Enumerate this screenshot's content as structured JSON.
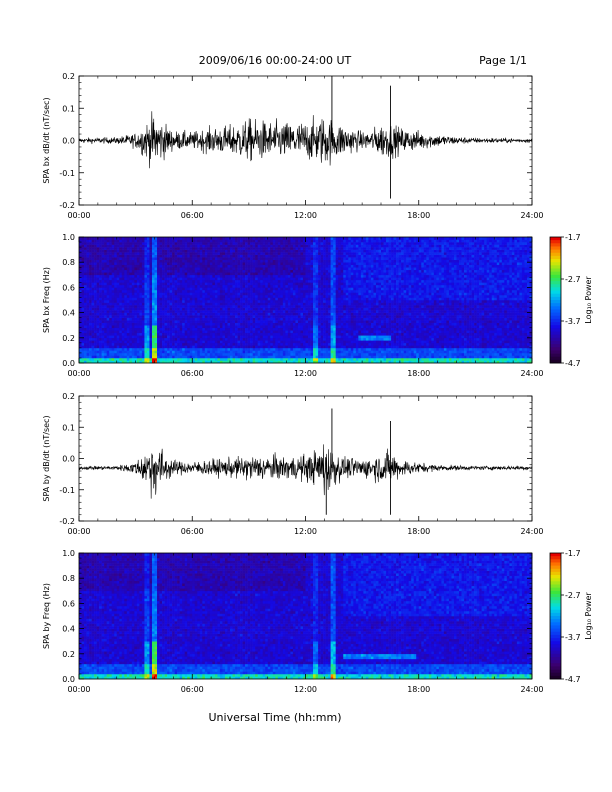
{
  "header": {
    "title": "2009/06/16  00:00-24:00 UT",
    "page": "Page 1/1"
  },
  "footer": {
    "xlabel": "Universal Time (hh:mm)"
  },
  "chart_data": [
    {
      "type": "line",
      "ylabel": "SPA bx dB/dt (nT/sec)",
      "xlim": [
        0,
        24
      ],
      "ylim": [
        -0.2,
        0.2
      ],
      "x_ticks": [
        "00:00",
        "06:00",
        "12:00",
        "18:00",
        "24:00"
      ],
      "y_ticks": [
        "-0.2",
        "-0.1",
        "0.0",
        "0.1",
        "0.2"
      ],
      "baseline": 0.0,
      "envelope": {
        "x": [
          0,
          2,
          3,
          3.5,
          4,
          4.3,
          5,
          6,
          7,
          8,
          9,
          10,
          11,
          12,
          12.5,
          13,
          13.5,
          14,
          15,
          15.5,
          16,
          16.5,
          17,
          18,
          19,
          20,
          21,
          22,
          23,
          24
        ],
        "amp": [
          0.012,
          0.015,
          0.035,
          0.08,
          0.13,
          0.1,
          0.045,
          0.04,
          0.06,
          0.07,
          0.1,
          0.09,
          0.085,
          0.09,
          0.1,
          0.12,
          0.095,
          0.075,
          0.04,
          0.05,
          0.08,
          0.08,
          0.06,
          0.045,
          0.03,
          0.018,
          0.012,
          0.012,
          0.01,
          0.01
        ]
      },
      "spikes": [
        {
          "x": 13.4,
          "y": 0.2
        },
        {
          "x": 16.5,
          "y": -0.18
        },
        {
          "x": 16.5,
          "y": 0.17
        }
      ]
    },
    {
      "type": "heatmap",
      "ylabel": "SPA bx Freq (Hz)",
      "xlim": [
        0,
        24
      ],
      "ylim": [
        0.0,
        1.0
      ],
      "x_ticks": [
        "00:00",
        "06:00",
        "12:00",
        "18:00",
        "24:00"
      ],
      "y_ticks": [
        "0.0",
        "0.2",
        "0.4",
        "0.6",
        "0.8",
        "1.0"
      ],
      "colorbar": {
        "label": "Log₁₀ Power",
        "ticks": [
          "-1.7",
          "-2.7",
          "-3.7",
          "-4.7"
        ],
        "range": [
          -4.7,
          -1.7
        ]
      },
      "vertical_bands": [
        {
          "x": 3.6,
          "strength": 0.5
        },
        {
          "x": 4.0,
          "strength": 0.9
        },
        {
          "x": 12.5,
          "strength": 0.4
        },
        {
          "x": 13.5,
          "strength": 0.55
        }
      ],
      "horizontal_bands": [
        {
          "x0": 14.8,
          "x1": 16.5,
          "freq": 0.2,
          "strength": 0.4
        }
      ]
    },
    {
      "type": "line",
      "ylabel": "SPA by dB/dt (nT/sec)",
      "xlim": [
        0,
        24
      ],
      "ylim": [
        -0.2,
        0.2
      ],
      "x_ticks": [
        "00:00",
        "06:00",
        "12:00",
        "18:00",
        "24:00"
      ],
      "y_ticks": [
        "-0.2",
        "-0.1",
        "0.0",
        "0.1",
        "0.2"
      ],
      "baseline": -0.03,
      "envelope": {
        "x": [
          0,
          2,
          3,
          3.5,
          4,
          4.3,
          5,
          6,
          7,
          8,
          9,
          10,
          11,
          12,
          12.5,
          13,
          13.5,
          14,
          15,
          15.5,
          16,
          16.5,
          17,
          18,
          19,
          20,
          21,
          22,
          23,
          24
        ],
        "amp": [
          0.008,
          0.01,
          0.03,
          0.08,
          0.15,
          0.1,
          0.035,
          0.03,
          0.04,
          0.045,
          0.06,
          0.06,
          0.055,
          0.065,
          0.08,
          0.14,
          0.09,
          0.05,
          0.045,
          0.055,
          0.07,
          0.08,
          0.045,
          0.025,
          0.015,
          0.012,
          0.01,
          0.01,
          0.01,
          0.01
        ]
      },
      "spikes": [
        {
          "x": 13.1,
          "y": -0.18
        },
        {
          "x": 13.4,
          "y": 0.16
        },
        {
          "x": 16.5,
          "y": -0.18
        },
        {
          "x": 16.5,
          "y": 0.12
        }
      ]
    },
    {
      "type": "heatmap",
      "ylabel": "SPA by Freq (Hz)",
      "xlim": [
        0,
        24
      ],
      "ylim": [
        0.0,
        1.0
      ],
      "x_ticks": [
        "00:00",
        "06:00",
        "12:00",
        "18:00",
        "24:00"
      ],
      "y_ticks": [
        "0.0",
        "0.2",
        "0.4",
        "0.6",
        "0.8",
        "1.0"
      ],
      "colorbar": {
        "label": "Log₁₀ Power",
        "ticks": [
          "-1.7",
          "-2.7",
          "-3.7",
          "-4.7"
        ],
        "range": [
          -4.7,
          -1.7
        ]
      },
      "vertical_bands": [
        {
          "x": 3.6,
          "strength": 0.5
        },
        {
          "x": 4.0,
          "strength": 0.9
        },
        {
          "x": 12.5,
          "strength": 0.35
        },
        {
          "x": 13.5,
          "strength": 0.6
        }
      ],
      "horizontal_bands": [
        {
          "x0": 14.0,
          "x1": 17.8,
          "freq": 0.18,
          "strength": 0.4
        }
      ]
    }
  ]
}
